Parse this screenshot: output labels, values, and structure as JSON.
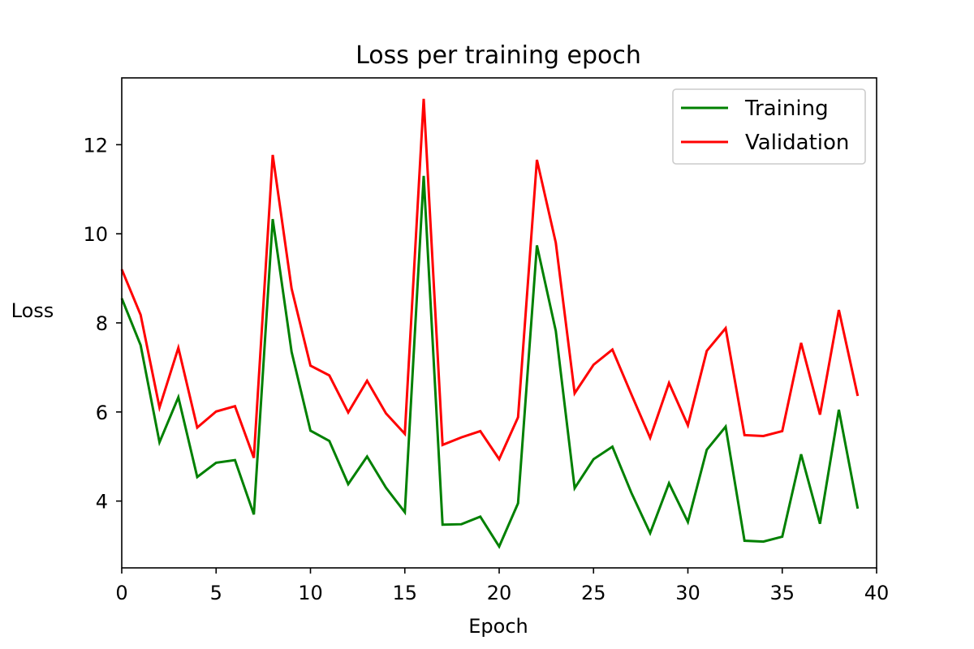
{
  "chart_data": {
    "type": "line",
    "title": "Loss per training epoch",
    "xlabel": "Epoch",
    "ylabel": "Loss",
    "xlim": [
      0,
      40
    ],
    "ylim": [
      2.5,
      13.5
    ],
    "xticks": [
      0,
      5,
      10,
      15,
      20,
      25,
      30,
      35,
      40
    ],
    "yticks": [
      4,
      6,
      8,
      10,
      12
    ],
    "grid": false,
    "legend_position": "top-right",
    "x": [
      0,
      1,
      2,
      3,
      4,
      5,
      6,
      7,
      8,
      9,
      10,
      11,
      12,
      13,
      14,
      15,
      16,
      17,
      18,
      19,
      20,
      21,
      22,
      23,
      24,
      25,
      26,
      27,
      28,
      29,
      30,
      31,
      32,
      33,
      34,
      35,
      36,
      37,
      38,
      39
    ],
    "series": [
      {
        "name": "Training",
        "color": "#008000",
        "values": [
          8.55,
          7.5,
          5.32,
          6.33,
          4.54,
          4.86,
          4.92,
          3.7,
          10.33,
          7.35,
          5.58,
          5.35,
          4.38,
          5.0,
          4.3,
          3.75,
          11.3,
          3.47,
          3.48,
          3.65,
          2.98,
          3.95,
          9.74,
          7.82,
          4.29,
          4.94,
          5.22,
          4.19,
          3.28,
          4.4,
          3.53,
          5.15,
          5.67,
          3.11,
          3.09,
          3.2,
          5.05,
          3.49,
          6.05,
          3.83
        ]
      },
      {
        "name": "Validation",
        "color": "#ff0000",
        "values": [
          9.2,
          8.18,
          6.1,
          7.44,
          5.65,
          6.01,
          6.13,
          4.97,
          11.77,
          8.77,
          7.04,
          6.82,
          5.99,
          6.7,
          5.97,
          5.51,
          13.03,
          5.26,
          5.43,
          5.57,
          4.94,
          5.88,
          11.66,
          9.8,
          6.42,
          7.06,
          7.4,
          6.4,
          5.42,
          6.65,
          5.7,
          7.37,
          7.88,
          5.48,
          5.46,
          5.57,
          7.55,
          5.94,
          8.29,
          6.36
        ]
      }
    ]
  }
}
